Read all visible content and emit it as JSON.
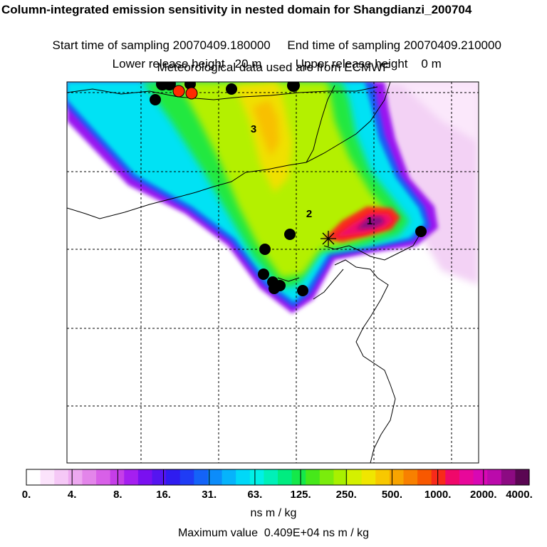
{
  "header": {
    "title": "Column-integrated emission sensitivity in nested domain for Shangdianzi_200704",
    "start_label": "Start time of sampling 20070409.180000",
    "end_label": "End time of sampling 20070409.210000",
    "lower_label": "Lower release height   20 m",
    "upper_label": "Upper release height    0 m",
    "met_label": "Meteorological data used are from ECMWF"
  },
  "map": {
    "region_labels": [
      "1",
      "2",
      "3"
    ],
    "release_marker": "release-site-star",
    "station_marker_colors": {
      "black": "#000000",
      "red": "#ff2a00"
    }
  },
  "colorbar": {
    "tick_labels": [
      "0.",
      "4.",
      "8.",
      "16.",
      "31.",
      "63.",
      "125.",
      "250.",
      "500.",
      "1000.",
      "2000.",
      "4000."
    ],
    "colors": [
      "#ffffff",
      "#fbe3fb",
      "#f5c8f6",
      "#eda8f0",
      "#e385ea",
      "#d860e8",
      "#c53ee8",
      "#a51ff0",
      "#7a10f0",
      "#5515f0",
      "#2f1cf0",
      "#1f3cf5",
      "#1463f8",
      "#0c8cfa",
      "#06b3fb",
      "#00d8f8",
      "#00f0e6",
      "#00f0b8",
      "#00ec80",
      "#14e84a",
      "#46e81a",
      "#7aec0c",
      "#a8f000",
      "#d4f000",
      "#f0e600",
      "#f8c800",
      "#f8a400",
      "#f88000",
      "#f85800",
      "#f82a1a",
      "#f0086a",
      "#e8089a",
      "#d808b4",
      "#bb0aab",
      "#8c0a82",
      "#5a0652"
    ],
    "units": "ns m / kg",
    "max_value_text": "Maximum value  0.409E+04 ns m / kg"
  }
}
